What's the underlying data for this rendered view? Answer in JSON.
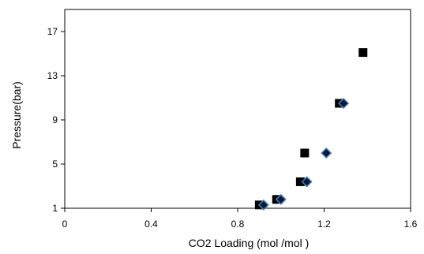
{
  "chart_data": {
    "type": "scatter",
    "title": "",
    "xlabel": "CO2 Loading (mol /mol )",
    "ylabel": "Pressure(bar)",
    "xlim": [
      0,
      1.6
    ],
    "ylim": [
      1,
      19
    ],
    "xticks": [
      "0",
      "0.4",
      "0.8",
      "1.2",
      "1.6"
    ],
    "yticks": [
      "1",
      "5",
      "9",
      "13",
      "17"
    ],
    "grid": false,
    "legend": "none",
    "series": [
      {
        "marker": "square",
        "color": "#000000",
        "points": [
          {
            "x": 0.9,
            "y": 1.3
          },
          {
            "x": 0.98,
            "y": 1.8
          },
          {
            "x": 1.09,
            "y": 3.4
          },
          {
            "x": 1.11,
            "y": 6.0
          },
          {
            "x": 1.27,
            "y": 10.5
          },
          {
            "x": 1.38,
            "y": 15.1
          }
        ]
      },
      {
        "marker": "diamond",
        "color": "#4a7ebb",
        "points": [
          {
            "x": 0.92,
            "y": 1.3
          },
          {
            "x": 1.0,
            "y": 1.8
          },
          {
            "x": 1.12,
            "y": 3.4
          },
          {
            "x": 1.21,
            "y": 6.0
          },
          {
            "x": 1.29,
            "y": 10.5
          }
        ]
      }
    ]
  }
}
